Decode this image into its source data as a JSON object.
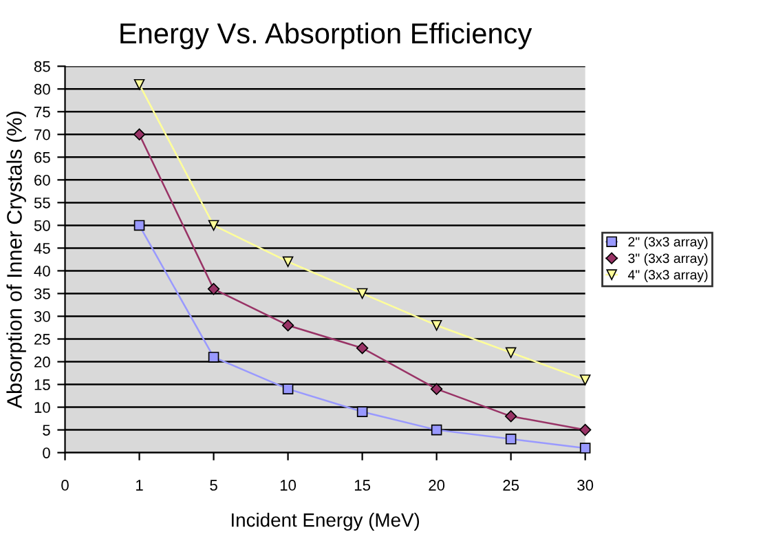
{
  "chart_data": {
    "type": "line",
    "title": "Energy Vs. Absorption Efficiency",
    "xlabel": "Incident Energy (MeV)",
    "ylabel": "Absorption of Inner Crystals (%)",
    "categories": [
      "0",
      "1",
      "5",
      "10",
      "15",
      "20",
      "25",
      "30"
    ],
    "series": [
      {
        "name": "2\" (3x3 array)",
        "color": "#9999ff",
        "marker": "square",
        "values": [
          null,
          50,
          21,
          14,
          9,
          5,
          3,
          1
        ]
      },
      {
        "name": "3\" (3x3 array)",
        "color": "#993366",
        "marker": "diamond",
        "values": [
          null,
          70,
          36,
          28,
          23,
          14,
          8,
          5
        ]
      },
      {
        "name": "4\" (3x3 array)",
        "color": "#ffff99",
        "marker": "triangle",
        "values": [
          null,
          81,
          50,
          42,
          35,
          28,
          22,
          16
        ]
      }
    ],
    "ylim": [
      0,
      85
    ],
    "yticks": [
      0,
      5,
      10,
      15,
      20,
      25,
      30,
      35,
      40,
      45,
      50,
      55,
      60,
      65,
      70,
      75,
      80,
      85
    ],
    "grid": "y",
    "legend": "right"
  }
}
